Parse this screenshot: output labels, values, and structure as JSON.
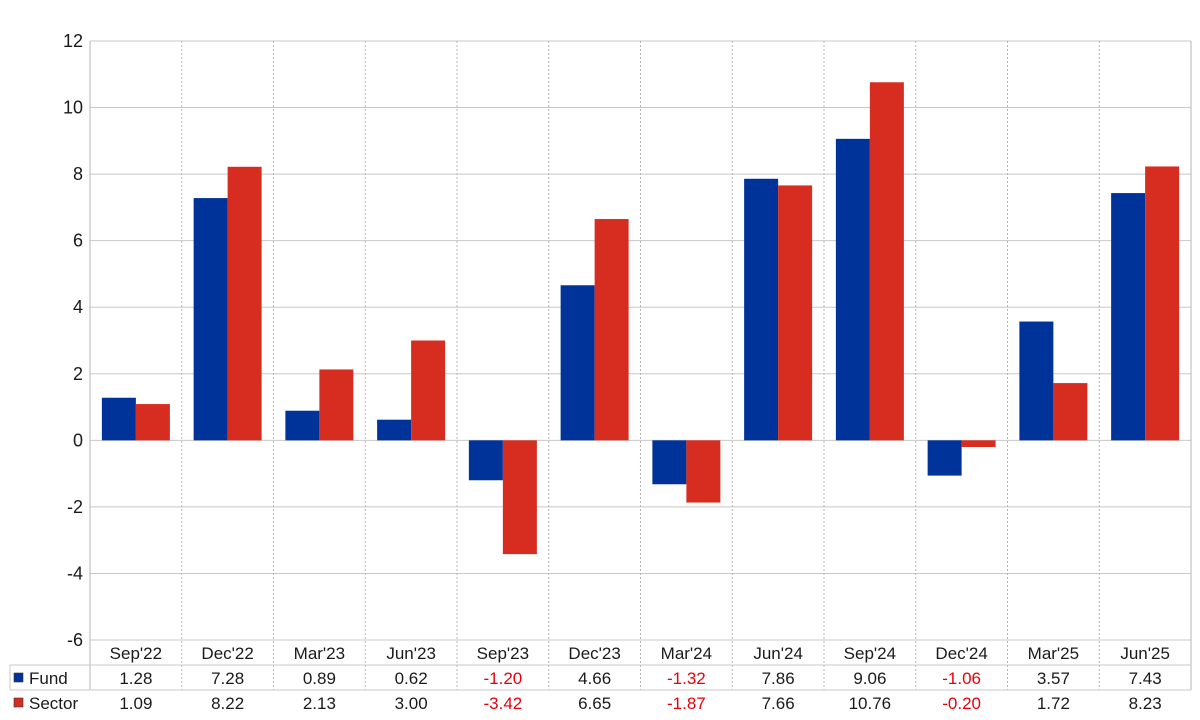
{
  "chart_data": {
    "type": "bar",
    "categories": [
      "Sep'22",
      "Dec'22",
      "Mar'23",
      "Jun'23",
      "Sep'23",
      "Dec'23",
      "Mar'24",
      "Jun'24",
      "Sep'24",
      "Dec'24",
      "Mar'25",
      "Jun'25"
    ],
    "series": [
      {
        "name": "Fund",
        "color": "#003399",
        "values": [
          1.28,
          7.28,
          0.89,
          0.62,
          -1.2,
          4.66,
          -1.32,
          7.86,
          9.06,
          -1.06,
          3.57,
          7.43
        ],
        "labels": [
          "1.28",
          "7.28",
          "0.89",
          "0.62",
          "-1.20",
          "4.66",
          "-1.32",
          "7.86",
          "9.06",
          "-1.06",
          "3.57",
          "7.43"
        ]
      },
      {
        "name": "Sector",
        "color": "#d62d20",
        "values": [
          1.09,
          8.22,
          2.13,
          3.0,
          -3.42,
          6.65,
          -1.87,
          7.66,
          10.76,
          -0.2,
          1.72,
          8.23
        ],
        "labels": [
          "1.09",
          "8.22",
          "2.13",
          "3.00",
          "-3.42",
          "6.65",
          "-1.87",
          "7.66",
          "10.76",
          "-0.20",
          "1.72",
          "8.23"
        ]
      }
    ],
    "ylim": [
      -6,
      12
    ],
    "yticks": [
      "12",
      "10",
      "8",
      "6",
      "4",
      "2",
      "0",
      "-2",
      "-4",
      "-6"
    ],
    "grid": true,
    "negative_value_color": "#e8000b",
    "table_below": true
  }
}
